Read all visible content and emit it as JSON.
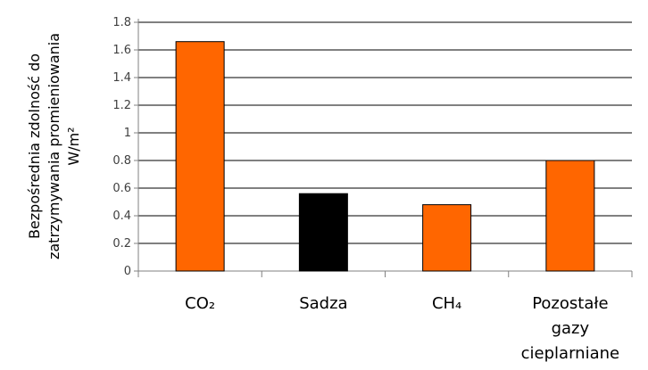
{
  "chart_data": {
    "type": "bar",
    "categories": [
      "CO₂",
      "Sadza",
      "CH₄",
      "Pozostałe gazy cieplarniane"
    ],
    "category_lines": [
      [
        "CO₂"
      ],
      [
        "Sadza"
      ],
      [
        "CH₄"
      ],
      [
        "Pozostałe",
        "gazy",
        "cieplarniane"
      ]
    ],
    "values": [
      1.66,
      0.56,
      0.48,
      0.8
    ],
    "bar_colors": [
      "#ff6600",
      "#000000",
      "#ff6600",
      "#ff6600"
    ],
    "ylabel_lines": [
      "Bezpośrednia zdolność do",
      "zatrzymywania promieniowania",
      "W/m²"
    ],
    "ylim": [
      0,
      1.8
    ],
    "yticks": [
      "0",
      "0.2",
      "0.4",
      "0.6",
      "0.8",
      "1",
      "1.2",
      "1.4",
      "1.6",
      "1.8"
    ],
    "grid": true,
    "grid_color": "#000000",
    "axis_color": "#808080"
  }
}
